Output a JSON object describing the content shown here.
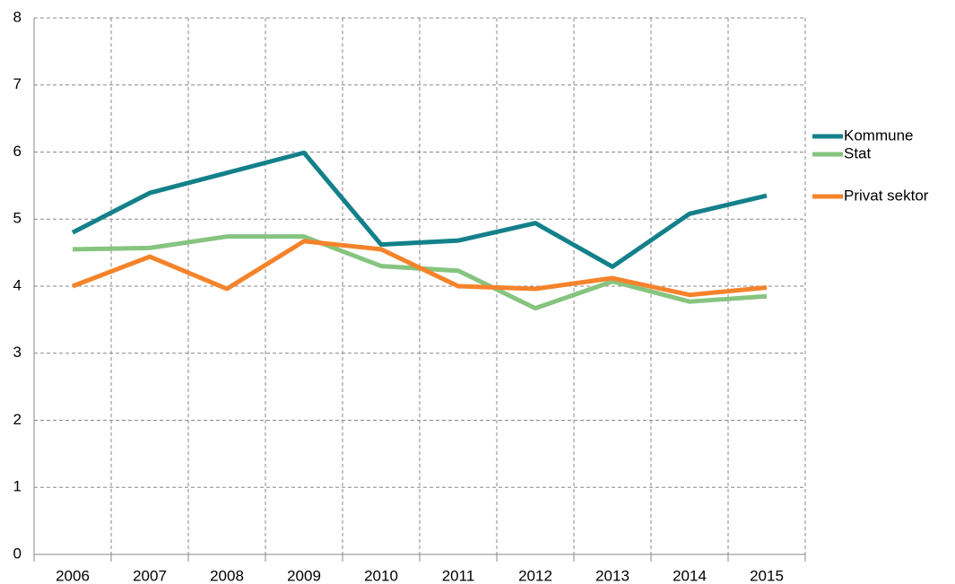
{
  "chart_data": {
    "type": "line",
    "categories": [
      "2006",
      "2007",
      "2008",
      "2009",
      "2010",
      "2011",
      "2012",
      "2013",
      "2014",
      "2015"
    ],
    "series": [
      {
        "name": "Kommune",
        "color": "#13808a",
        "values": [
          4.8,
          5.39,
          5.69,
          5.99,
          4.62,
          4.68,
          4.94,
          4.29,
          5.08,
          5.35
        ]
      },
      {
        "name": "Stat",
        "color": "#86c47f",
        "values": [
          4.55,
          4.57,
          4.74,
          4.74,
          4.3,
          4.23,
          3.67,
          4.07,
          3.77,
          3.85
        ]
      },
      {
        "name": "Privat sektor",
        "color": "#f5832b",
        "values": [
          4.0,
          4.44,
          3.96,
          4.67,
          4.55,
          4.0,
          3.96,
          4.12,
          3.87,
          3.98
        ]
      }
    ],
    "ylim": [
      0,
      8
    ],
    "yticks": [
      0,
      1,
      2,
      3,
      4,
      5,
      6,
      7,
      8
    ],
    "grid": true,
    "legend": "right"
  }
}
